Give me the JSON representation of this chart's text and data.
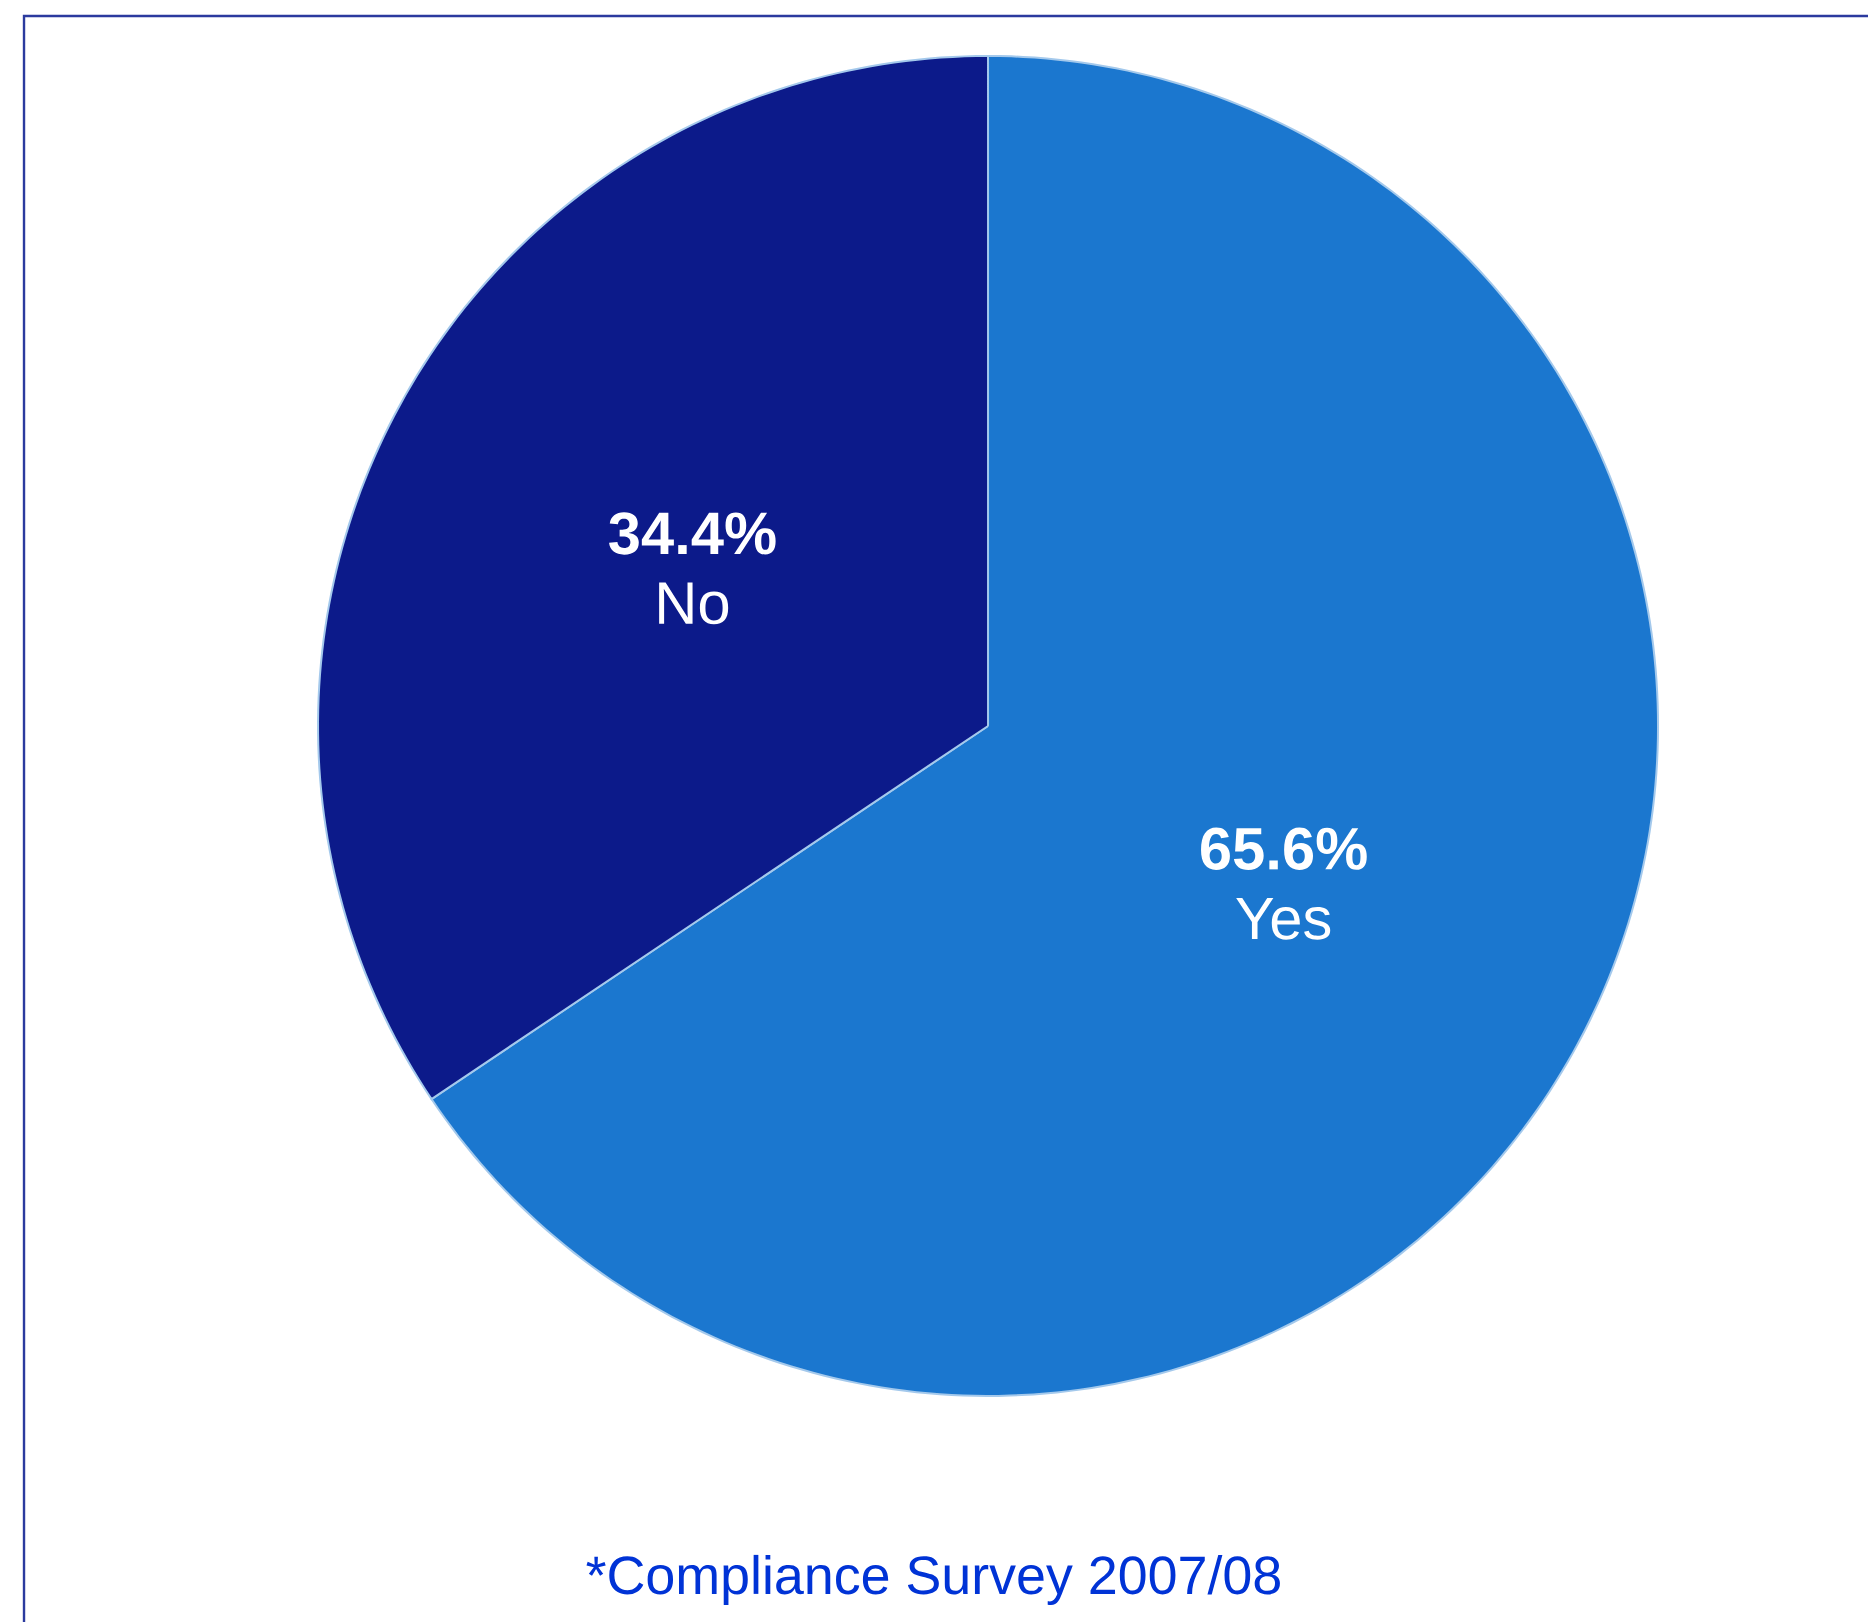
{
  "chart_data": {
    "type": "pie",
    "categories": [
      "Yes",
      "No"
    ],
    "values": [
      65.6,
      34.4
    ],
    "colors": [
      "#1b77cf",
      "#0c1a8a"
    ],
    "value_labels": [
      "65.6%",
      "34.4%"
    ],
    "annotations": [
      "*Compliance Survey 2007/08"
    ]
  }
}
